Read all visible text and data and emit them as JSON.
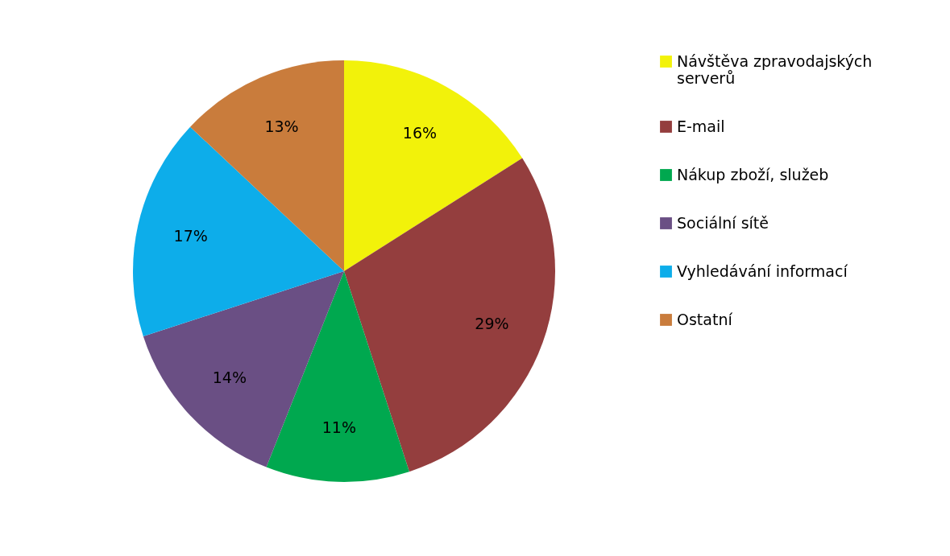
{
  "chart_data": {
    "type": "pie",
    "categories": [
      "Návštěva zpravodajských serverů",
      "E-mail",
      "Nákup zboží, služeb",
      "Sociální sítě",
      "Vyhledávání informací",
      "Ostatní"
    ],
    "values": [
      16,
      29,
      11,
      14,
      17,
      13
    ],
    "colors": [
      "#f2f20a",
      "#943e3e",
      "#00a84f",
      "#6a4f84",
      "#0dadea",
      "#c97c3c"
    ],
    "value_labels": [
      "16%",
      "29%",
      "11%",
      "14%",
      "17%",
      "13%"
    ],
    "legend": "right"
  }
}
